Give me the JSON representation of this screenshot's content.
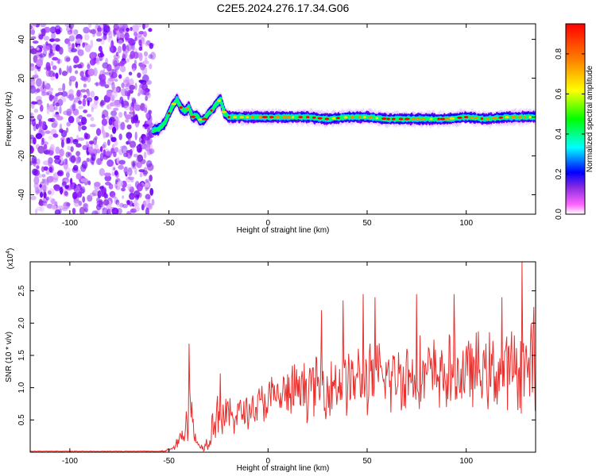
{
  "title": "C2E5.2024.276.17.34.G06",
  "chart_data": [
    {
      "type": "heatmap",
      "xlabel": "Height of straight line (km)",
      "ylabel": "Frequency (Hz)",
      "xlim": [
        -120,
        135
      ],
      "ylim": [
        -50,
        48
      ],
      "xticks": [
        -100,
        -50,
        0,
        50,
        100
      ],
      "yticks": [
        -40,
        -20,
        0,
        20,
        40
      ],
      "noise_region_x": [
        -120,
        -58
      ],
      "ridge": {
        "x": [
          -58,
          -55,
          -52,
          -50,
          -48,
          -46,
          -44,
          -42,
          -40,
          -38,
          -36,
          -34,
          -32,
          -30,
          -28,
          -26,
          -24,
          -22,
          -20,
          -15,
          -10,
          0,
          10,
          20,
          30,
          40,
          50,
          60,
          70,
          80,
          90,
          100,
          110,
          120,
          130,
          135
        ],
        "frequency": [
          -7,
          -6,
          -3,
          2,
          6,
          9,
          5,
          3,
          5,
          0,
          1,
          -2,
          -1,
          2,
          4,
          7,
          9,
          2,
          0,
          0,
          0,
          0,
          0,
          0,
          -1,
          0,
          0,
          -1,
          -1,
          -1,
          -1,
          0,
          -1,
          0,
          0,
          0
        ]
      },
      "colorbar": {
        "label": "Normalized spectral amplitude",
        "ticks": [
          0.0,
          0.2,
          0.4,
          0.6,
          0.8
        ],
        "range": [
          0,
          0.95
        ],
        "colormap": [
          "#ffffff",
          "#ff66ff",
          "#8a2be2",
          "#0000ff",
          "#00ffff",
          "#00ff00",
          "#ffff00",
          "#ff8800",
          "#ff0000"
        ]
      }
    },
    {
      "type": "line",
      "xlabel": "Height of straight line (km)",
      "ylabel": "SNR (10 * v/v)",
      "y_multiplier_label": "(x10",
      "y_multiplier_exp": "4",
      "y_multiplier_close": ")",
      "xlim": [
        -120,
        135
      ],
      "ylim": [
        0,
        2.95
      ],
      "xticks": [
        -100,
        -50,
        0,
        50,
        100
      ],
      "yticks": [
        0.5,
        1.0,
        1.5,
        2.0,
        2.5
      ],
      "ytick_labels": [
        "0.5",
        "1.0",
        "1.5",
        "2.0",
        "2.5"
      ],
      "series": [
        {
          "color": "#e8302e",
          "envelope": {
            "x": [
              -120,
              -55,
              -50,
              -46,
              -42,
              -40,
              -38,
              -36,
              -34,
              -32,
              -30,
              -28,
              -26,
              -24,
              -20,
              -10,
              0,
              10,
              20,
              30,
              40,
              50,
              60,
              70,
              80,
              90,
              100,
              110,
              120,
              128,
              135
            ],
            "base": [
              0.01,
              0.01,
              0.03,
              0.12,
              0.35,
              0.75,
              0.45,
              0.15,
              0.08,
              0.1,
              0.2,
              0.45,
              0.6,
              0.55,
              0.55,
              0.65,
              0.8,
              0.9,
              1.0,
              1.05,
              1.1,
              1.15,
              1.15,
              1.2,
              1.2,
              1.2,
              1.25,
              1.25,
              1.25,
              1.3,
              1.3
            ],
            "amp": [
              0.01,
              0.01,
              0.04,
              0.1,
              0.25,
              0.8,
              0.35,
              0.08,
              0.05,
              0.1,
              0.2,
              0.35,
              0.5,
              0.45,
              0.35,
              0.35,
              0.45,
              0.5,
              0.55,
              0.6,
              0.65,
              0.65,
              0.7,
              0.7,
              0.7,
              0.7,
              0.7,
              0.7,
              0.75,
              0.8,
              0.8
            ]
          },
          "peaks": [
            {
              "x": -40,
              "y": 1.68
            },
            {
              "x": -24,
              "y": 1.22
            },
            {
              "x": 27,
              "y": 2.2
            },
            {
              "x": 38,
              "y": 2.35
            },
            {
              "x": 48,
              "y": 2.45
            },
            {
              "x": 54,
              "y": 2.4
            },
            {
              "x": 75,
              "y": 2.45
            },
            {
              "x": 94,
              "y": 2.45
            },
            {
              "x": 118,
              "y": 2.4
            },
            {
              "x": 128,
              "y": 2.95
            },
            {
              "x": 134,
              "y": 2.25
            }
          ]
        }
      ]
    }
  ]
}
